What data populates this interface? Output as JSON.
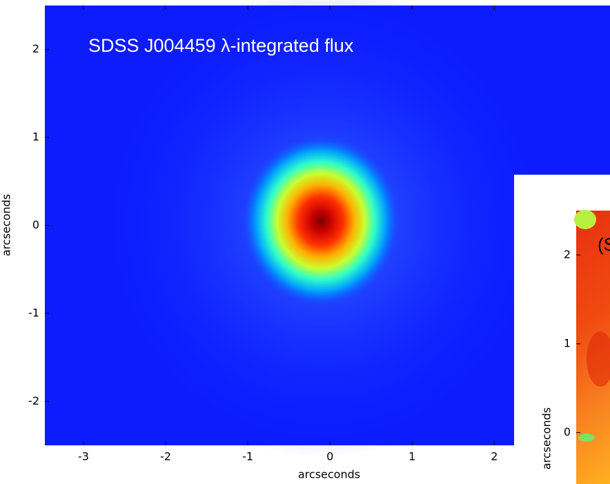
{
  "chart_data": [
    {
      "type": "heatmap",
      "title": "SDSS J004459 λ-integrated flux",
      "xlabel": "arcseconds",
      "ylabel": "arcseconds",
      "xlim": [
        -3.47,
        3.45
      ],
      "ylim": [
        -2.5,
        2.5
      ],
      "xticks": [
        -3,
        -2,
        -1,
        0,
        1,
        2
      ],
      "yticks": [
        -2,
        -1,
        0,
        1,
        2
      ]
    },
    {
      "type": "heatmap",
      "title": "(S",
      "ylabel": "arcseconds",
      "ylim": [
        -0.58,
        2.5
      ],
      "yticks": [
        0,
        1,
        2
      ]
    }
  ]
}
